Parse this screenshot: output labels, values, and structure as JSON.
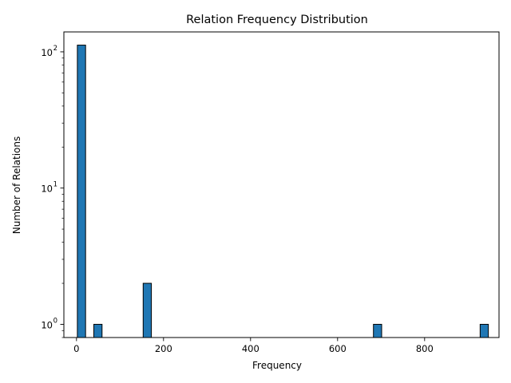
{
  "chart_data": {
    "type": "bar",
    "title": "Relation Frequency Distribution",
    "xlabel": "Frequency",
    "ylabel": "Number of Relations",
    "yscale": "log",
    "xlim": [
      -29,
      971
    ],
    "ylim": [
      0.8,
      140
    ],
    "grid": false,
    "legend": "none",
    "bar_color": "#1f77b4",
    "edge_color": "#000000",
    "x_ticks": [
      {
        "value": 0,
        "label": "0"
      },
      {
        "value": 200,
        "label": "200"
      },
      {
        "value": 400,
        "label": "400"
      },
      {
        "value": 600,
        "label": "600"
      },
      {
        "value": 800,
        "label": "800"
      }
    ],
    "y_ticks": [
      {
        "value": 1,
        "base": "10",
        "exp": "0"
      },
      {
        "value": 10,
        "base": "10",
        "exp": "1"
      },
      {
        "value": 100,
        "base": "10",
        "exp": "2"
      }
    ],
    "bin_width": 18.9,
    "bins": [
      {
        "x0": 2,
        "x1": 20.9,
        "count": 112
      },
      {
        "x0": 39.8,
        "x1": 58.7,
        "count": 1
      },
      {
        "x0": 153.2,
        "x1": 172.1,
        "count": 2
      },
      {
        "x0": 682.4,
        "x1": 701.3,
        "count": 1
      },
      {
        "x0": 927.6,
        "x1": 946.5,
        "count": 1
      }
    ]
  }
}
